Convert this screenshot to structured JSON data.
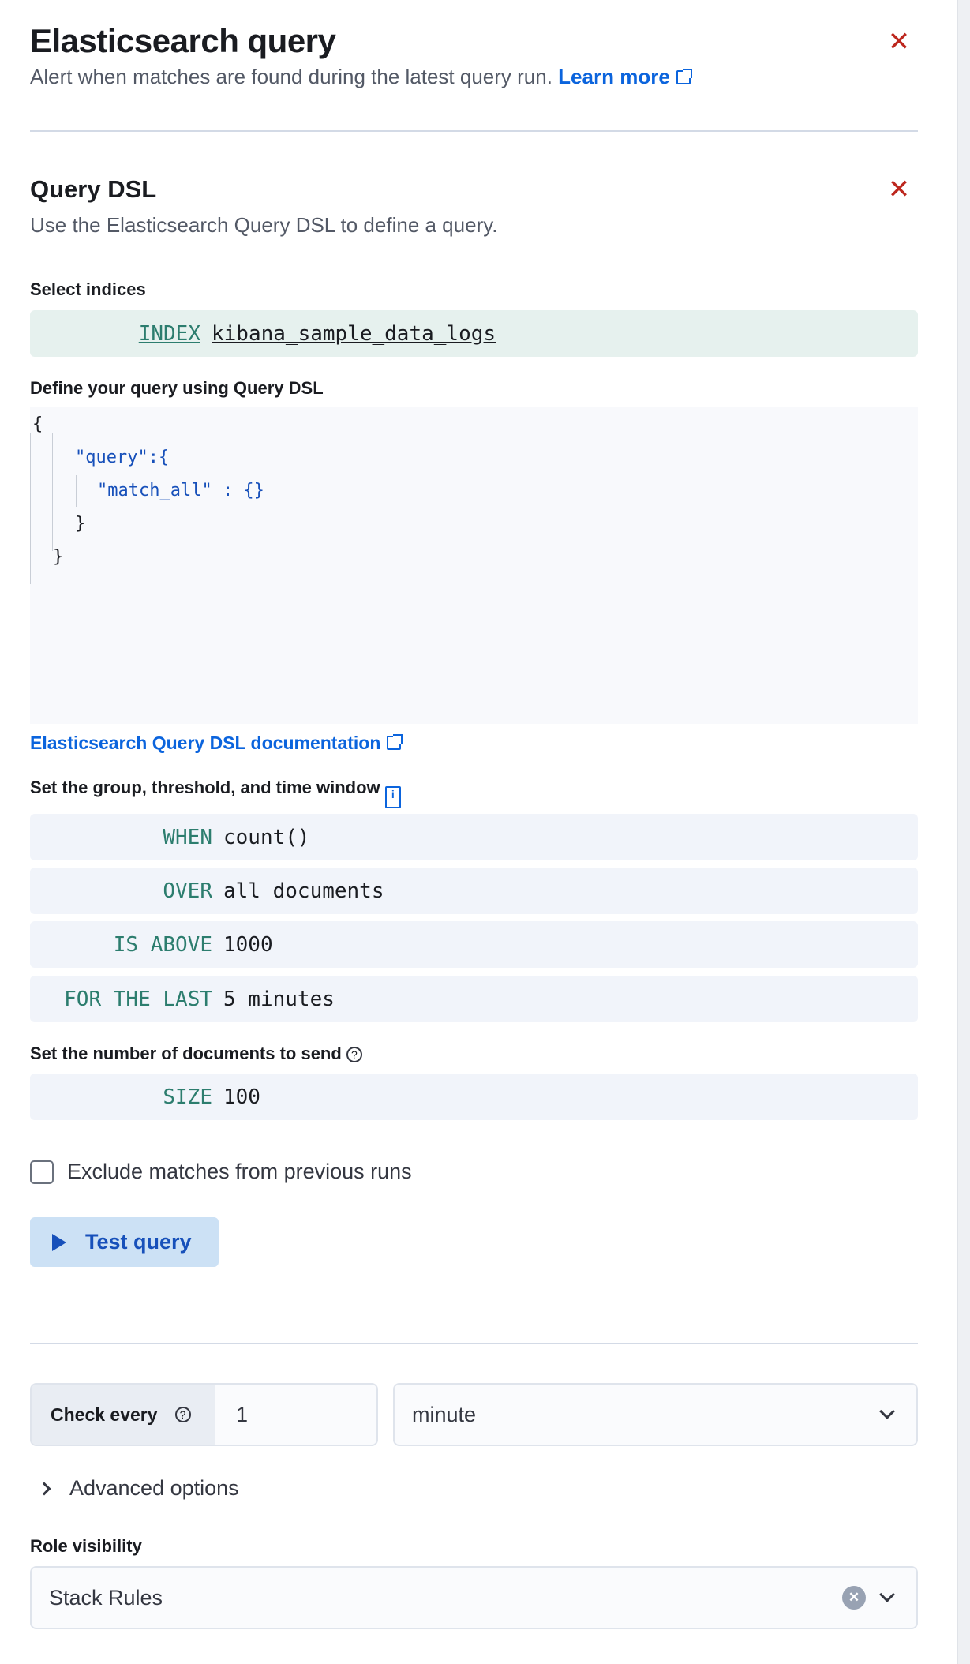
{
  "header": {
    "title": "Elasticsearch query",
    "subtitle": "Alert when matches are found during the latest query run.",
    "learn_more": "Learn more"
  },
  "query_dsl": {
    "title": "Query DSL",
    "description": "Use the Elasticsearch Query DSL to define a query."
  },
  "indices": {
    "label": "Select indices",
    "keyword": "INDEX",
    "value": "kibana_sample_data_logs"
  },
  "query_editor": {
    "label": "Define your query using Query DSL",
    "lines": [
      "{",
      "\"query\":{",
      "\"match_all\" : {}",
      "}",
      "}"
    ]
  },
  "doc_link": "Elasticsearch Query DSL documentation",
  "threshold": {
    "label": "Set the group, threshold, and time window",
    "rows": [
      {
        "keyword": "WHEN",
        "value": "count()"
      },
      {
        "keyword": "OVER",
        "value": "all documents"
      },
      {
        "keyword": "IS ABOVE",
        "value": "1000"
      },
      {
        "keyword": "FOR THE LAST",
        "value": "5 minutes"
      }
    ]
  },
  "size": {
    "label": "Set the number of documents to send",
    "keyword": "SIZE",
    "value": "100"
  },
  "exclude_matches": {
    "label": "Exclude matches from previous runs",
    "checked": false
  },
  "test_query": "Test query",
  "schedule": {
    "label": "Check every",
    "value": "1",
    "unit": "minute"
  },
  "advanced_options": "Advanced options",
  "role_visibility": {
    "label": "Role visibility",
    "value": "Stack Rules"
  },
  "colors": {
    "keyword": "#2c7d6e",
    "link": "#0b64dd",
    "close": "#bd271e"
  }
}
